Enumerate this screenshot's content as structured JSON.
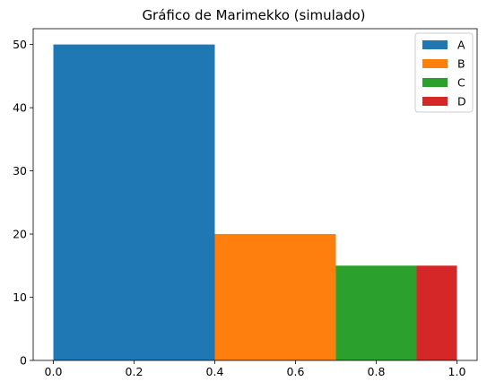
{
  "chart_data": {
    "type": "bar",
    "variant": "marimekko",
    "title": "Gráfico de Marimekko (simulado)",
    "xlabel": "",
    "ylabel": "",
    "xlim": [
      -0.05,
      1.05
    ],
    "ylim": [
      0,
      52.5
    ],
    "x_ticks": [
      0.0,
      0.2,
      0.4,
      0.6,
      0.8,
      1.0
    ],
    "x_tick_labels": [
      "0.0",
      "0.2",
      "0.4",
      "0.6",
      "0.8",
      "1.0"
    ],
    "y_ticks": [
      0,
      10,
      20,
      30,
      40,
      50
    ],
    "y_tick_labels": [
      "0",
      "10",
      "20",
      "30",
      "40",
      "50"
    ],
    "grid": false,
    "legend_position": "top-right",
    "categories": [
      "A",
      "B",
      "C",
      "D"
    ],
    "segments": [
      {
        "name": "A",
        "x_start": 0.0,
        "x_end": 0.4,
        "value": 50,
        "color": "#1f77b4"
      },
      {
        "name": "B",
        "x_start": 0.4,
        "x_end": 0.7,
        "value": 20,
        "color": "#ff7f0e"
      },
      {
        "name": "C",
        "x_start": 0.7,
        "x_end": 0.9,
        "value": 15,
        "color": "#2ca02c"
      },
      {
        "name": "D",
        "x_start": 0.9,
        "x_end": 1.0,
        "value": 15,
        "color": "#d62728"
      }
    ]
  }
}
